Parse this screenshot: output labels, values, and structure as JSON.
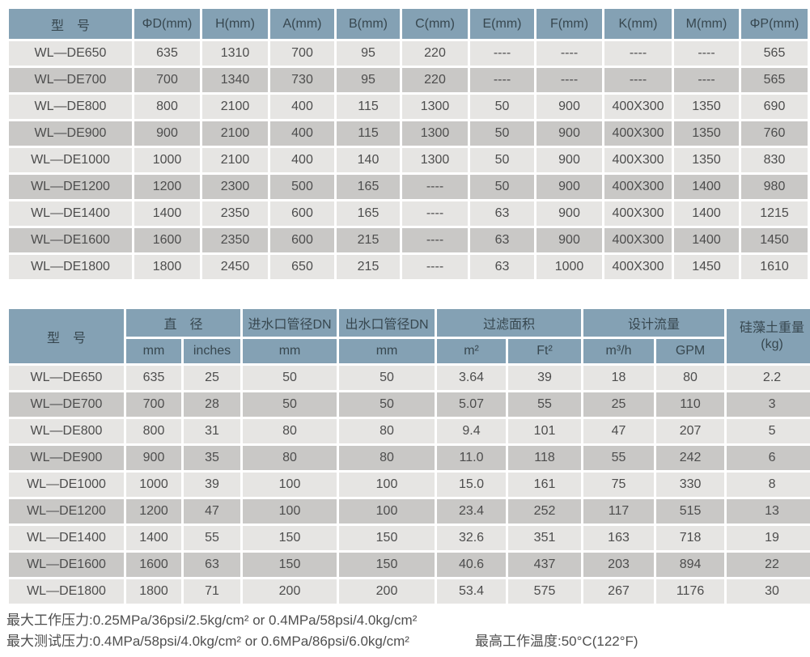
{
  "colors": {
    "header_bg": "#84a1b4",
    "header_text": "#37474f",
    "row_light": "#e6e5e3",
    "row_dark": "#c9c8c6",
    "cell_text": "#4d4d4d",
    "page_bg": "#ffffff"
  },
  "table1": {
    "headers": [
      "型　号",
      "ΦD(mm)",
      "H(mm)",
      "A(mm)",
      "B(mm)",
      "C(mm)",
      "E(mm)",
      "F(mm)",
      "K(mm)",
      "M(mm)",
      "ΦP(mm)"
    ],
    "rows": [
      [
        "WL—DE650",
        "635",
        "1310",
        "700",
        "95",
        "220",
        "----",
        "----",
        "----",
        "----",
        "565"
      ],
      [
        "WL—DE700",
        "700",
        "1340",
        "730",
        "95",
        "220",
        "----",
        "----",
        "----",
        "----",
        "565"
      ],
      [
        "WL—DE800",
        "800",
        "2100",
        "400",
        "115",
        "1300",
        "50",
        "900",
        "400X300",
        "1350",
        "690"
      ],
      [
        "WL—DE900",
        "900",
        "2100",
        "400",
        "115",
        "1300",
        "50",
        "900",
        "400X300",
        "1350",
        "760"
      ],
      [
        "WL—DE1000",
        "1000",
        "2100",
        "400",
        "140",
        "1300",
        "50",
        "900",
        "400X300",
        "1350",
        "830"
      ],
      [
        "WL—DE1200",
        "1200",
        "2300",
        "500",
        "165",
        "----",
        "50",
        "900",
        "400X300",
        "1400",
        "980"
      ],
      [
        "WL—DE1400",
        "1400",
        "2350",
        "600",
        "165",
        "----",
        "63",
        "900",
        "400X300",
        "1400",
        "1215"
      ],
      [
        "WL—DE1600",
        "1600",
        "2350",
        "600",
        "215",
        "----",
        "63",
        "900",
        "400X300",
        "1400",
        "1450"
      ],
      [
        "WL—DE1800",
        "1800",
        "2450",
        "650",
        "215",
        "----",
        "63",
        "1000",
        "400X300",
        "1450",
        "1610"
      ]
    ]
  },
  "table2": {
    "header": {
      "model": "型　号",
      "diameter": "直　径",
      "inlet": "进水口管径DN",
      "outlet": "出水口管径DN",
      "filter_area": "过滤面积",
      "design_flow": "设计流量",
      "weight_label": "硅藻土重量",
      "weight_unit": "(kg)"
    },
    "subheaders": [
      "mm",
      "inches",
      "mm",
      "mm",
      "m²",
      "Ft²",
      "m³/h",
      "GPM"
    ],
    "rows": [
      [
        "WL—DE650",
        "635",
        "25",
        "50",
        "50",
        "3.64",
        "39",
        "18",
        "80",
        "2.2"
      ],
      [
        "WL—DE700",
        "700",
        "28",
        "50",
        "50",
        "5.07",
        "55",
        "25",
        "110",
        "3"
      ],
      [
        "WL—DE800",
        "800",
        "31",
        "80",
        "80",
        "9.4",
        "101",
        "47",
        "207",
        "5"
      ],
      [
        "WL—DE900",
        "900",
        "35",
        "80",
        "80",
        "11.0",
        "118",
        "55",
        "242",
        "6"
      ],
      [
        "WL—DE1000",
        "1000",
        "39",
        "100",
        "100",
        "15.0",
        "161",
        "75",
        "330",
        "8"
      ],
      [
        "WL—DE1200",
        "1200",
        "47",
        "100",
        "100",
        "23.4",
        "252",
        "117",
        "515",
        "13"
      ],
      [
        "WL—DE1400",
        "1400",
        "55",
        "150",
        "150",
        "32.6",
        "351",
        "163",
        "718",
        "19"
      ],
      [
        "WL—DE1600",
        "1600",
        "63",
        "150",
        "150",
        "40.6",
        "437",
        "203",
        "894",
        "22"
      ],
      [
        "WL—DE1800",
        "1800",
        "71",
        "200",
        "200",
        "53.4",
        "575",
        "267",
        "1176",
        "30"
      ]
    ]
  },
  "notes": {
    "line1": "最大工作压力:0.25MPa/36psi/2.5kg/cm² or 0.4MPa/58psi/4.0kg/cm²",
    "line2": "最大测试压力:0.4MPa/58psi/4.0kg/cm² or 0.6MPa/86psi/6.0kg/cm²",
    "right": "最高工作温度:50°C(122°F)"
  }
}
